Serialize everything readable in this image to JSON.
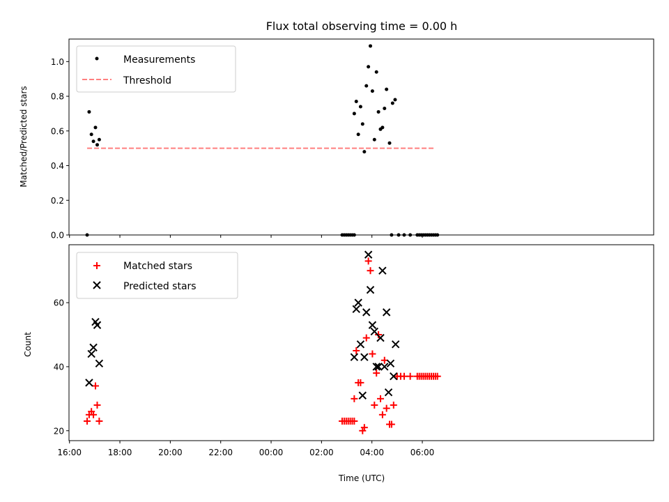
{
  "figure": {
    "title": "Flux total observing time = 0.00 h"
  },
  "colors": {
    "measurements": "#000000",
    "threshold": "#ff7f7f",
    "matched": "#ff0000",
    "predicted": "#000000"
  },
  "chart_data": [
    {
      "type": "scatter",
      "panel": "top",
      "title": "Flux total observing time = 0.00 h",
      "xlabel": "",
      "ylabel": "Matched/Predicted stars",
      "x_units": "hours since 16:00 UTC",
      "xlim": [
        15.98,
        39.18
      ],
      "ylim": [
        0,
        1.13
      ],
      "yticks": [
        0.0,
        0.2,
        0.4,
        0.6,
        0.8,
        1.0
      ],
      "ytick_labels": [
        "0.0",
        "0.2",
        "0.4",
        "0.6",
        "0.8",
        "1.0"
      ],
      "legend": {
        "position": "upper left",
        "entries": [
          "Measurements",
          "Threshold"
        ]
      },
      "series": [
        {
          "name": "Measurements",
          "marker": "dot",
          "points": [
            [
              16.7,
              0.0
            ],
            [
              16.78,
              0.71
            ],
            [
              16.87,
              0.58
            ],
            [
              16.95,
              0.54
            ],
            [
              17.03,
              0.62
            ],
            [
              17.1,
              0.52
            ],
            [
              17.18,
              0.55
            ],
            [
              26.82,
              0.0
            ],
            [
              26.9,
              0.0
            ],
            [
              26.98,
              0.0
            ],
            [
              27.06,
              0.0
            ],
            [
              27.14,
              0.0
            ],
            [
              27.22,
              0.0
            ],
            [
              27.3,
              0.0
            ],
            [
              27.3,
              0.7
            ],
            [
              27.38,
              0.77
            ],
            [
              27.46,
              0.58
            ],
            [
              27.55,
              0.74
            ],
            [
              27.63,
              0.64
            ],
            [
              27.7,
              0.48
            ],
            [
              27.78,
              0.86
            ],
            [
              27.86,
              0.97
            ],
            [
              27.94,
              1.09
            ],
            [
              28.02,
              0.83
            ],
            [
              28.1,
              0.55
            ],
            [
              28.18,
              0.94
            ],
            [
              28.26,
              0.71
            ],
            [
              28.34,
              0.61
            ],
            [
              28.42,
              0.62
            ],
            [
              28.5,
              0.73
            ],
            [
              28.58,
              0.84
            ],
            [
              28.7,
              0.53
            ],
            [
              28.82,
              0.76
            ],
            [
              28.92,
              0.78
            ],
            [
              28.78,
              0.0
            ],
            [
              29.06,
              0.0
            ],
            [
              29.28,
              0.0
            ],
            [
              29.52,
              0.0
            ],
            [
              29.8,
              0.0
            ],
            [
              29.88,
              0.0
            ],
            [
              29.96,
              0.0
            ],
            [
              30.04,
              0.0
            ],
            [
              30.12,
              0.0
            ],
            [
              30.2,
              0.0
            ],
            [
              30.28,
              0.0
            ],
            [
              30.36,
              0.0
            ],
            [
              30.44,
              0.0
            ],
            [
              30.52,
              0.0
            ],
            [
              30.6,
              0.0
            ]
          ]
        },
        {
          "name": "Threshold",
          "style": "dashed",
          "points": [
            [
              16.7,
              0.5
            ],
            [
              30.45,
              0.5
            ]
          ]
        }
      ]
    },
    {
      "type": "scatter",
      "panel": "bottom",
      "xlabel": "Time (UTC)",
      "ylabel": "Count",
      "x_units": "hours since 16:00 UTC",
      "xlim": [
        15.98,
        39.18
      ],
      "ylim": [
        16.9,
        78.1
      ],
      "yticks": [
        20,
        40,
        60
      ],
      "ytick_labels": [
        "20",
        "40",
        "60"
      ],
      "xticks": [
        16,
        18,
        20,
        22,
        24,
        26,
        28,
        30
      ],
      "xtick_labels": [
        "16:00",
        "18:00",
        "20:00",
        "22:00",
        "00:00",
        "02:00",
        "04:00",
        "06:00"
      ],
      "legend": {
        "position": "upper left",
        "entries": [
          "Matched stars",
          "Predicted stars"
        ]
      },
      "series": [
        {
          "name": "Matched stars",
          "marker": "plus",
          "points": [
            [
              16.7,
              23
            ],
            [
              16.78,
              25
            ],
            [
              16.87,
              26
            ],
            [
              16.95,
              25
            ],
            [
              17.03,
              34
            ],
            [
              17.1,
              28
            ],
            [
              17.18,
              23
            ],
            [
              26.82,
              23
            ],
            [
              26.9,
              23
            ],
            [
              26.98,
              23
            ],
            [
              27.06,
              23
            ],
            [
              27.14,
              23
            ],
            [
              27.22,
              23
            ],
            [
              27.3,
              23
            ],
            [
              27.3,
              30
            ],
            [
              27.38,
              45
            ],
            [
              27.46,
              35
            ],
            [
              27.55,
              35
            ],
            [
              27.63,
              20
            ],
            [
              27.7,
              21
            ],
            [
              27.78,
              49
            ],
            [
              27.86,
              73
            ],
            [
              27.94,
              70
            ],
            [
              28.02,
              44
            ],
            [
              28.1,
              28
            ],
            [
              28.18,
              38
            ],
            [
              28.26,
              50
            ],
            [
              28.34,
              30
            ],
            [
              28.42,
              25
            ],
            [
              28.5,
              42
            ],
            [
              28.58,
              27
            ],
            [
              28.7,
              22
            ],
            [
              28.78,
              22
            ],
            [
              28.86,
              28
            ],
            [
              29.0,
              37
            ],
            [
              29.14,
              37
            ],
            [
              29.28,
              37
            ],
            [
              29.52,
              37
            ],
            [
              29.8,
              37
            ],
            [
              29.88,
              37
            ],
            [
              29.96,
              37
            ],
            [
              30.04,
              37
            ],
            [
              30.12,
              37
            ],
            [
              30.2,
              37
            ],
            [
              30.28,
              37
            ],
            [
              30.36,
              37
            ],
            [
              30.44,
              37
            ],
            [
              30.52,
              37
            ],
            [
              30.6,
              37
            ]
          ]
        },
        {
          "name": "Predicted stars",
          "marker": "x",
          "points": [
            [
              16.78,
              35
            ],
            [
              16.87,
              44
            ],
            [
              16.95,
              46
            ],
            [
              17.03,
              54
            ],
            [
              17.1,
              53
            ],
            [
              17.18,
              41
            ],
            [
              27.3,
              43
            ],
            [
              27.38,
              58
            ],
            [
              27.46,
              60
            ],
            [
              27.55,
              47
            ],
            [
              27.63,
              31
            ],
            [
              27.7,
              43
            ],
            [
              27.78,
              57
            ],
            [
              27.86,
              75
            ],
            [
              27.94,
              64
            ],
            [
              28.02,
              53
            ],
            [
              28.1,
              51
            ],
            [
              28.18,
              40
            ],
            [
              28.26,
              40
            ],
            [
              28.34,
              49
            ],
            [
              28.42,
              70
            ],
            [
              28.5,
              40
            ],
            [
              28.58,
              57
            ],
            [
              28.66,
              32
            ],
            [
              28.74,
              41
            ],
            [
              28.86,
              37
            ],
            [
              28.94,
              47
            ]
          ]
        }
      ]
    }
  ]
}
